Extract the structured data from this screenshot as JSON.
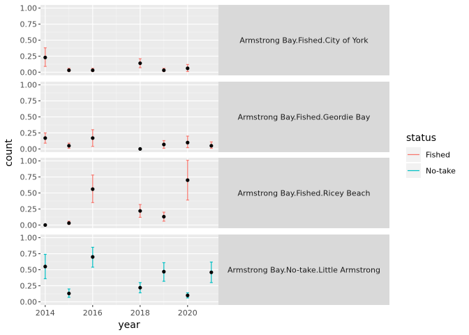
{
  "chart_data": {
    "type": "scatter",
    "subtype": "point-with-errorbars, faceted",
    "xlabel": "year",
    "ylabel": "count",
    "x_ticks": [
      2014,
      2016,
      2018,
      2020
    ],
    "xlim": [
      2013.8,
      2021.3
    ],
    "y_ticks": [
      0.0,
      0.25,
      0.5,
      0.75,
      1.0
    ],
    "y_tick_labels": [
      "0.00",
      "0.25",
      "0.50",
      "0.75",
      "1.00"
    ],
    "ylim": [
      -0.05,
      1.05
    ],
    "grid": true,
    "legend": {
      "title": "status",
      "placement": "right",
      "entries": [
        {
          "label": "Fished",
          "color": "#F8766D"
        },
        {
          "label": "No-take",
          "color": "#00BFC4"
        }
      ]
    },
    "point_color": "#000000",
    "panels": [
      {
        "strip_label": "Armstrong Bay.Fished.City of York",
        "status": "Fished",
        "points": [
          {
            "x": 2014,
            "y": 0.23,
            "ymin": 0.09,
            "ymax": 0.38
          },
          {
            "x": 2015,
            "y": 0.03,
            "ymin": 0.01,
            "ymax": 0.06
          },
          {
            "x": 2016,
            "y": 0.03,
            "ymin": 0.01,
            "ymax": 0.06
          },
          {
            "x": 2018,
            "y": 0.14,
            "ymin": 0.07,
            "ymax": 0.21
          },
          {
            "x": 2019,
            "y": 0.03,
            "ymin": 0.01,
            "ymax": 0.06
          },
          {
            "x": 2020,
            "y": 0.06,
            "ymin": 0.01,
            "ymax": 0.12
          }
        ]
      },
      {
        "strip_label": "Armstrong Bay.Fished.Geordie Bay",
        "status": "Fished",
        "points": [
          {
            "x": 2014,
            "y": 0.17,
            "ymin": 0.09,
            "ymax": 0.25
          },
          {
            "x": 2015,
            "y": 0.05,
            "ymin": 0.01,
            "ymax": 0.09
          },
          {
            "x": 2016,
            "y": 0.17,
            "ymin": 0.04,
            "ymax": 0.3
          },
          {
            "x": 2018,
            "y": 0.0,
            "ymin": 0.0,
            "ymax": 0.01
          },
          {
            "x": 2019,
            "y": 0.07,
            "ymin": 0.01,
            "ymax": 0.13
          },
          {
            "x": 2020,
            "y": 0.1,
            "ymin": 0.02,
            "ymax": 0.2
          },
          {
            "x": 2021,
            "y": 0.05,
            "ymin": 0.01,
            "ymax": 0.11
          }
        ]
      },
      {
        "strip_label": "Armstrong Bay.Fished.Ricey Beach",
        "status": "Fished",
        "points": [
          {
            "x": 2014,
            "y": 0.0,
            "ymin": 0.0,
            "ymax": 0.0
          },
          {
            "x": 2015,
            "y": 0.03,
            "ymin": 0.01,
            "ymax": 0.06
          },
          {
            "x": 2016,
            "y": 0.56,
            "ymin": 0.35,
            "ymax": 0.78
          },
          {
            "x": 2018,
            "y": 0.22,
            "ymin": 0.12,
            "ymax": 0.32
          },
          {
            "x": 2019,
            "y": 0.13,
            "ymin": 0.06,
            "ymax": 0.2
          },
          {
            "x": 2020,
            "y": 0.7,
            "ymin": 0.39,
            "ymax": 1.01
          }
        ]
      },
      {
        "strip_label": "Armstrong Bay.No-take.Little Armstrong",
        "status": "No-take",
        "points": [
          {
            "x": 2014,
            "y": 0.55,
            "ymin": 0.36,
            "ymax": 0.74
          },
          {
            "x": 2015,
            "y": 0.13,
            "ymin": 0.07,
            "ymax": 0.2
          },
          {
            "x": 2016,
            "y": 0.7,
            "ymin": 0.54,
            "ymax": 0.85
          },
          {
            "x": 2018,
            "y": 0.22,
            "ymin": 0.14,
            "ymax": 0.3
          },
          {
            "x": 2019,
            "y": 0.47,
            "ymin": 0.32,
            "ymax": 0.61
          },
          {
            "x": 2020,
            "y": 0.1,
            "ymin": 0.06,
            "ymax": 0.14
          },
          {
            "x": 2021,
            "y": 0.46,
            "ymin": 0.3,
            "ymax": 0.62
          }
        ]
      }
    ]
  }
}
